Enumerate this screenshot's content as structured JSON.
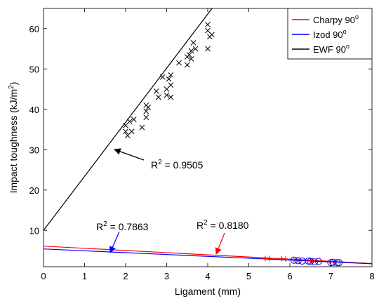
{
  "chart_data": {
    "type": "scatter",
    "xlabel": "Ligament (mm)",
    "ylabel_main": "Impact toughness (kJ/m",
    "ylabel_sup": "2",
    "ylabel_end": ")",
    "xlim": [
      0,
      8
    ],
    "ylim": [
      1,
      65
    ],
    "xticks": [
      0,
      1,
      2,
      3,
      4,
      5,
      6,
      7,
      8
    ],
    "yticks": [
      10,
      20,
      30,
      40,
      50,
      60
    ],
    "grid": false,
    "legend_position": "top-right",
    "legend": [
      {
        "name": "Charpy 90",
        "sup": "o",
        "color": "#ff0000"
      },
      {
        "name": "Izod 90",
        "sup": "o",
        "color": "#0000ff"
      },
      {
        "name": "EWF 90",
        "sup": "o",
        "color": "#000000"
      }
    ],
    "series": [
      {
        "name": "Charpy 90",
        "color": "#ff0000",
        "marker": "+",
        "fit": {
          "slope": -0.54,
          "intercept": 6.1
        },
        "r2_label": "R",
        "r2_sup": "2",
        "r2_value": " = 0.8180",
        "points": [
          [
            5.4,
            3.0
          ],
          [
            5.5,
            3.0
          ],
          [
            5.8,
            3.0
          ],
          [
            5.9,
            2.9
          ],
          [
            6.1,
            2.8
          ],
          [
            6.2,
            2.7
          ],
          [
            6.5,
            2.6
          ],
          [
            6.55,
            2.5
          ],
          [
            7.0,
            2.2
          ],
          [
            7.1,
            2.1
          ]
        ]
      },
      {
        "name": "Izod 90",
        "color": "#0000ff",
        "marker": "o",
        "fit": {
          "slope": -0.46,
          "intercept": 5.4
        },
        "r2_label": "R",
        "r2_sup": "2",
        "r2_value": " = 0.7863",
        "points": [
          [
            6.1,
            2.6
          ],
          [
            6.2,
            2.5
          ],
          [
            6.3,
            2.4
          ],
          [
            6.45,
            2.4
          ],
          [
            6.5,
            2.3
          ],
          [
            6.6,
            2.2
          ],
          [
            6.7,
            2.3
          ],
          [
            7.0,
            2.0
          ],
          [
            7.05,
            2.1
          ],
          [
            7.15,
            2.0
          ],
          [
            7.2,
            2.0
          ]
        ]
      },
      {
        "name": "EWF 90",
        "color": "#000000",
        "marker": "x",
        "fit": {
          "slope": 13.4,
          "intercept": 10.0
        },
        "r2_label": "R",
        "r2_sup": "2",
        "r2_value": " = 0.9505",
        "points": [
          [
            2.0,
            34.5
          ],
          [
            2.0,
            36.0
          ],
          [
            2.05,
            33.5
          ],
          [
            2.1,
            37.0
          ],
          [
            2.15,
            34.5
          ],
          [
            2.2,
            37.5
          ],
          [
            2.4,
            35.5
          ],
          [
            2.5,
            41.0
          ],
          [
            2.5,
            39.5
          ],
          [
            2.5,
            38.0
          ],
          [
            2.55,
            40.5
          ],
          [
            2.75,
            44.5
          ],
          [
            2.8,
            43.0
          ],
          [
            2.9,
            48.0
          ],
          [
            3.0,
            45.0
          ],
          [
            3.0,
            43.5
          ],
          [
            3.05,
            47.5
          ],
          [
            3.1,
            46.0
          ],
          [
            3.1,
            43.0
          ],
          [
            3.1,
            48.5
          ],
          [
            3.3,
            51.5
          ],
          [
            3.5,
            53.0
          ],
          [
            3.5,
            51.0
          ],
          [
            3.55,
            53.5
          ],
          [
            3.6,
            52.5
          ],
          [
            3.6,
            54.5
          ],
          [
            3.65,
            56.5
          ],
          [
            3.7,
            55.0
          ],
          [
            4.0,
            55.0
          ],
          [
            4.0,
            59.5
          ],
          [
            4.0,
            61.0
          ],
          [
            4.05,
            58.0
          ],
          [
            4.1,
            58.5
          ]
        ]
      }
    ]
  }
}
